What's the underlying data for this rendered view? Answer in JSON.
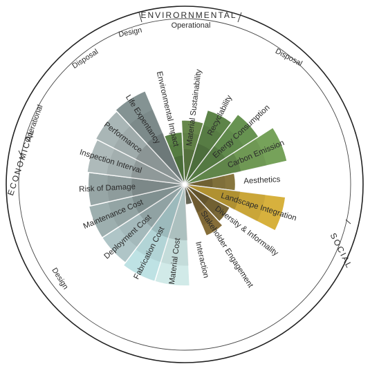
{
  "diagram": {
    "groups": [
      {
        "key": "environmental",
        "label": "ENVIRORNMENTAL"
      },
      {
        "key": "social",
        "label": "SOCIAL"
      },
      {
        "key": "economical",
        "label": "ECONOMICAL"
      }
    ],
    "phases": [
      {
        "key": "env-design",
        "label": "Design"
      },
      {
        "key": "env-operational",
        "label": "Operational"
      },
      {
        "key": "env-disposal-right",
        "label": "Disposal"
      },
      {
        "key": "eco-disposal",
        "label": "Disposal"
      },
      {
        "key": "eco-operational",
        "label": "Operational"
      },
      {
        "key": "eco-design",
        "label": "Design"
      }
    ],
    "colors": {
      "environmental": "#4e7a3a",
      "carbon": "#6a9a4c",
      "social": "#7a5f2a",
      "landscape": "#d4a82a",
      "economical": "#5d6d6c",
      "fabrication": "#b8e0e0"
    },
    "categories": [
      {
        "label": "Material Sustainability",
        "value": 0.38,
        "color": "#5a7e3c",
        "group": "environmental"
      },
      {
        "label": "Recyclability",
        "value": 0.46,
        "color": "#4f7a39",
        "group": "environmental"
      },
      {
        "label": "Energy Consumption",
        "value": 0.52,
        "color": "#5a8a42",
        "group": "environmental"
      },
      {
        "label": "Carbon Emission",
        "value": 0.62,
        "color": "#6a9a4c",
        "group": "environmental"
      },
      {
        "label": "Aesthetics",
        "value": 0.3,
        "color": "#7d6a2e",
        "group": "social"
      },
      {
        "label": "Landscape Integration",
        "value": 0.6,
        "color": "#d4aa2c",
        "group": "social"
      },
      {
        "label": "Diversity & Informality",
        "value": 0.3,
        "color": "#6e5a25",
        "group": "social"
      },
      {
        "label": "Stakeholder Engagement",
        "value": 0.33,
        "color": "#7c6228",
        "group": "social"
      },
      {
        "label": "Interaction",
        "value": 0.12,
        "color": "#5a5a48",
        "group": "social"
      },
      {
        "label": "Material Cost",
        "value": 0.6,
        "color": "#cde8e6",
        "group": "economical"
      },
      {
        "label": "Fabrication Cost",
        "value": 0.6,
        "color": "#b8e0e2",
        "group": "economical"
      },
      {
        "label": "Deployment Cost",
        "value": 0.58,
        "color": "#a8c0c2",
        "group": "economical"
      },
      {
        "label": "Maintenance Cost",
        "value": 0.58,
        "color": "#95a8a8",
        "group": "economical"
      },
      {
        "label": "Risk of Damage",
        "value": 0.57,
        "color": "#8e9e9e",
        "group": "economical"
      },
      {
        "label": "Inspection Interval",
        "value": 0.58,
        "color": "#a7b4b4",
        "group": "economical"
      },
      {
        "label": "Performance",
        "value": 0.59,
        "color": "#a2b0b0",
        "group": "economical"
      },
      {
        "label": "Life Expentancy",
        "value": 0.6,
        "color": "#7a8a8a",
        "group": "economical"
      },
      {
        "label": "Environmental Impact",
        "value": 0.31,
        "color": "#4d7a36",
        "group": "environmental"
      }
    ]
  }
}
